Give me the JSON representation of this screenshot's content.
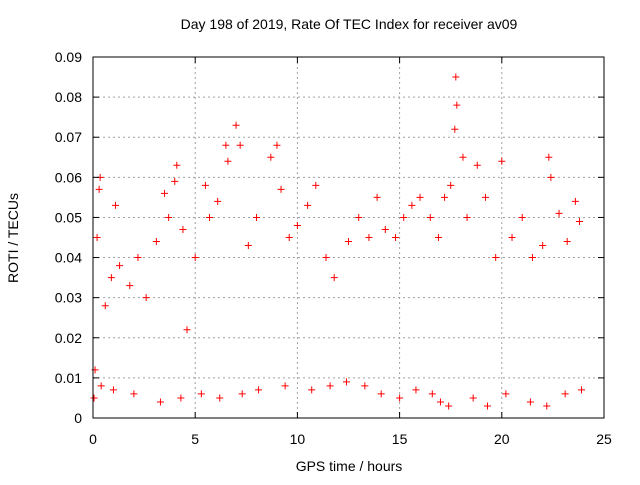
{
  "chart_data": {
    "type": "scatter",
    "title": "Day 198 of 2019, Rate Of TEC Index for receiver av09",
    "xlabel": "GPS time / hours",
    "ylabel": "ROTI / TECUs",
    "xlim": [
      0,
      25
    ],
    "ylim": [
      0,
      0.09
    ],
    "x_ticks": [
      0,
      5,
      10,
      15,
      20,
      25
    ],
    "x_tick_labels": [
      "0",
      "5",
      "10",
      "15",
      "20",
      "25"
    ],
    "y_ticks": [
      0,
      0.01,
      0.02,
      0.03,
      0.04,
      0.05,
      0.06,
      0.07,
      0.08,
      0.09
    ],
    "y_tick_labels": [
      "0",
      "0.01",
      "0.02",
      "0.03",
      "0.04",
      "0.05",
      "0.06",
      "0.07",
      "0.08",
      "0.09"
    ],
    "grid": true,
    "marker": "plus",
    "colors": {
      "series": "#ff0000",
      "grid": "#a0a0a0",
      "axis": "#000000"
    },
    "series": [
      {
        "points": [
          [
            0.1,
            0.012
          ],
          [
            0.2,
            0.045
          ],
          [
            0.3,
            0.057
          ],
          [
            0.35,
            0.06
          ],
          [
            0.6,
            0.028
          ],
          [
            0.9,
            0.035
          ],
          [
            1.1,
            0.053
          ],
          [
            1.3,
            0.038
          ],
          [
            1.8,
            0.033
          ],
          [
            2.2,
            0.04
          ],
          [
            2.6,
            0.03
          ],
          [
            3.1,
            0.044
          ],
          [
            3.5,
            0.056
          ],
          [
            3.7,
            0.05
          ],
          [
            4.0,
            0.059
          ],
          [
            4.1,
            0.063
          ],
          [
            4.4,
            0.047
          ],
          [
            4.6,
            0.022
          ],
          [
            5.0,
            0.04
          ],
          [
            5.5,
            0.058
          ],
          [
            5.7,
            0.05
          ],
          [
            6.1,
            0.054
          ],
          [
            6.5,
            0.068
          ],
          [
            6.6,
            0.064
          ],
          [
            7.0,
            0.073
          ],
          [
            7.2,
            0.068
          ],
          [
            7.6,
            0.043
          ],
          [
            8.0,
            0.05
          ],
          [
            8.7,
            0.065
          ],
          [
            9.0,
            0.068
          ],
          [
            9.2,
            0.057
          ],
          [
            9.6,
            0.045
          ],
          [
            10.0,
            0.048
          ],
          [
            10.5,
            0.053
          ],
          [
            10.9,
            0.058
          ],
          [
            11.4,
            0.04
          ],
          [
            11.8,
            0.035
          ],
          [
            12.5,
            0.044
          ],
          [
            13.0,
            0.05
          ],
          [
            13.5,
            0.045
          ],
          [
            13.9,
            0.055
          ],
          [
            14.3,
            0.047
          ],
          [
            14.8,
            0.045
          ],
          [
            15.2,
            0.05
          ],
          [
            15.6,
            0.053
          ],
          [
            16.0,
            0.055
          ],
          [
            16.5,
            0.05
          ],
          [
            16.9,
            0.045
          ],
          [
            17.2,
            0.055
          ],
          [
            17.5,
            0.058
          ],
          [
            17.7,
            0.072
          ],
          [
            17.75,
            0.085
          ],
          [
            17.8,
            0.078
          ],
          [
            18.1,
            0.065
          ],
          [
            18.3,
            0.05
          ],
          [
            18.8,
            0.063
          ],
          [
            19.2,
            0.055
          ],
          [
            19.7,
            0.04
          ],
          [
            20.0,
            0.064
          ],
          [
            20.5,
            0.045
          ],
          [
            21.0,
            0.05
          ],
          [
            21.5,
            0.04
          ],
          [
            22.0,
            0.043
          ],
          [
            22.3,
            0.065
          ],
          [
            22.4,
            0.06
          ],
          [
            22.8,
            0.051
          ],
          [
            23.2,
            0.044
          ],
          [
            23.6,
            0.054
          ],
          [
            23.8,
            0.049
          ],
          [
            0.05,
            0.005
          ],
          [
            0.4,
            0.008
          ],
          [
            1.0,
            0.007
          ],
          [
            2.0,
            0.006
          ],
          [
            3.3,
            0.004
          ],
          [
            4.3,
            0.005
          ],
          [
            5.3,
            0.006
          ],
          [
            6.2,
            0.005
          ],
          [
            7.3,
            0.006
          ],
          [
            8.1,
            0.007
          ],
          [
            9.4,
            0.008
          ],
          [
            10.7,
            0.007
          ],
          [
            11.6,
            0.008
          ],
          [
            12.4,
            0.009
          ],
          [
            13.3,
            0.008
          ],
          [
            14.1,
            0.006
          ],
          [
            15.0,
            0.005
          ],
          [
            15.8,
            0.007
          ],
          [
            16.6,
            0.006
          ],
          [
            17.0,
            0.004
          ],
          [
            17.4,
            0.003
          ],
          [
            18.6,
            0.005
          ],
          [
            19.3,
            0.003
          ],
          [
            20.2,
            0.006
          ],
          [
            21.4,
            0.004
          ],
          [
            22.2,
            0.003
          ],
          [
            23.1,
            0.006
          ],
          [
            23.9,
            0.007
          ]
        ]
      }
    ]
  }
}
